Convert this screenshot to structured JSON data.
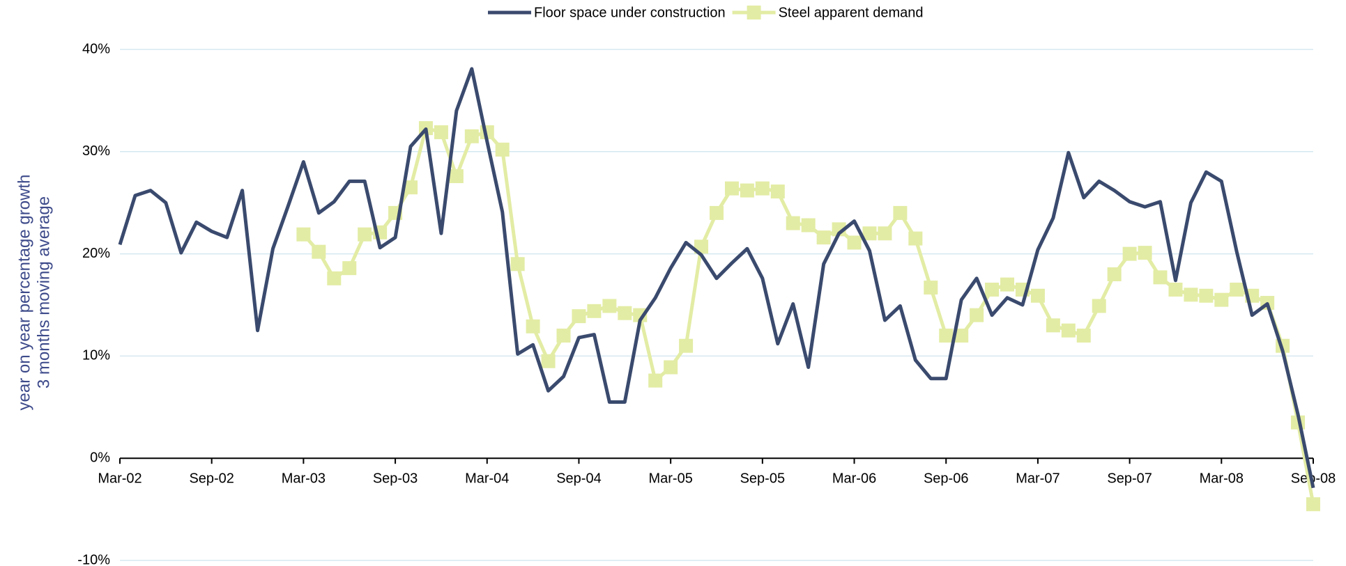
{
  "chart_data": {
    "type": "line",
    "ylabel": [
      "year on year percentage growth",
      "3 months moving average"
    ],
    "categories": [
      "Mar-02",
      null,
      null,
      null,
      null,
      null,
      "Sep-02",
      null,
      null,
      null,
      null,
      null,
      "Mar-03",
      null,
      null,
      null,
      null,
      null,
      "Sep-03",
      null,
      null,
      null,
      null,
      null,
      "Mar-04",
      null,
      null,
      null,
      null,
      null,
      "Sep-04",
      null,
      null,
      null,
      null,
      null,
      "Mar-05",
      null,
      null,
      null,
      null,
      null,
      "Sep-05",
      null,
      null,
      null,
      null,
      null,
      "Mar-06",
      null,
      null,
      null,
      null,
      null,
      "Sep-06",
      null,
      null,
      null,
      null,
      null,
      "Mar-07",
      null,
      null,
      null,
      null,
      null,
      "Sep-07",
      null,
      null,
      null,
      null,
      null,
      "Mar-08",
      null,
      null,
      null,
      null,
      null,
      "Sep-08"
    ],
    "series": [
      {
        "name": "Floor space under construction",
        "color": "#3a4a6e",
        "marker": "none",
        "values": [
          20.9,
          25.7,
          26.2,
          25.0,
          20.1,
          23.1,
          22.2,
          21.6,
          26.2,
          12.5,
          20.5,
          24.7,
          29.0,
          24.0,
          25.1,
          27.1,
          27.1,
          20.6,
          21.6,
          30.5,
          32.2,
          22.0,
          34.0,
          38.1,
          31.0,
          24.1,
          10.2,
          11.1,
          6.6,
          8.0,
          11.8,
          12.1,
          5.5,
          5.5,
          13.5,
          15.7,
          18.6,
          21.1,
          19.9,
          17.6,
          19.1,
          20.5,
          17.6,
          11.2,
          15.1,
          8.9,
          19.0,
          22.0,
          23.2,
          20.3,
          13.5,
          14.9,
          9.6,
          7.8,
          7.8,
          15.5,
          17.6,
          14.0,
          15.7,
          15.0,
          20.4,
          23.5,
          29.9,
          25.5,
          27.1,
          26.2,
          25.1,
          24.6,
          25.1,
          17.4,
          25.0,
          28.0,
          27.1,
          20.2,
          14.0,
          15.1,
          10.5,
          4.3,
          -2.9
        ]
      },
      {
        "name": "Steel apparent demand",
        "color": "#e3eca4",
        "marker": "square",
        "values": [
          null,
          null,
          null,
          null,
          null,
          null,
          null,
          null,
          null,
          null,
          null,
          null,
          21.9,
          20.2,
          17.6,
          18.6,
          21.9,
          22.1,
          24.0,
          26.5,
          32.3,
          31.9,
          27.6,
          31.5,
          31.9,
          30.2,
          19.0,
          12.9,
          9.5,
          12.0,
          13.9,
          14.4,
          14.9,
          14.2,
          14.0,
          7.6,
          8.9,
          11.0,
          20.7,
          24.0,
          26.4,
          26.2,
          26.4,
          26.1,
          23.0,
          22.8,
          21.6,
          22.4,
          21.1,
          22.0,
          22.0,
          24.0,
          21.5,
          16.7,
          12.0,
          12.0,
          14.0,
          16.5,
          17.0,
          16.5,
          15.9,
          13.0,
          12.5,
          12.0,
          14.9,
          18.0,
          20.0,
          20.1,
          17.7,
          16.5,
          16.0,
          15.9,
          15.5,
          16.5,
          15.9,
          15.2,
          11.0,
          3.5,
          -4.5
        ]
      }
    ],
    "ylim": [
      -10,
      40
    ],
    "yticks": [
      {
        "value": -10,
        "label": "-10%"
      },
      {
        "value": 0,
        "label": "0%"
      },
      {
        "value": 10,
        "label": "10%"
      },
      {
        "value": 20,
        "label": "20%"
      },
      {
        "value": 30,
        "label": "30%"
      },
      {
        "value": 40,
        "label": "40%"
      }
    ],
    "grid": true,
    "legend": "top"
  }
}
